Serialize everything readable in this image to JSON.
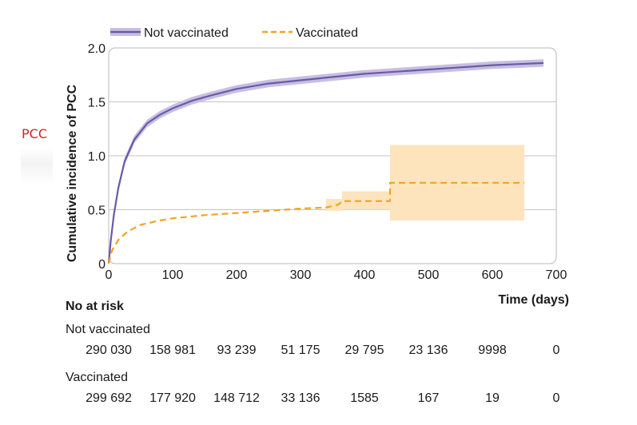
{
  "side_label": "PCC",
  "chart_data": {
    "type": "line",
    "title": "",
    "xlabel": "Time (days)",
    "ylabel": "Cumulative incidence of PCC",
    "xlim": [
      0,
      700
    ],
    "ylim": [
      0,
      2.0
    ],
    "x_ticks": [
      "0",
      "100",
      "200",
      "300",
      "400",
      "500",
      "600",
      "700"
    ],
    "y_ticks": [
      "0",
      "0.5",
      "1.0",
      "1.5",
      "2.0"
    ],
    "grid": "horizontal",
    "legend_position": "top",
    "series": [
      {
        "name": "Not vaccinated",
        "color": "#6a5aa6",
        "band_color": "#c7bfe3",
        "style": "solid",
        "points": [
          [
            0,
            0
          ],
          [
            3,
            0.2
          ],
          [
            8,
            0.45
          ],
          [
            15,
            0.7
          ],
          [
            25,
            0.95
          ],
          [
            40,
            1.15
          ],
          [
            60,
            1.3
          ],
          [
            80,
            1.38
          ],
          [
            100,
            1.44
          ],
          [
            130,
            1.51
          ],
          [
            160,
            1.56
          ],
          [
            200,
            1.62
          ],
          [
            250,
            1.67
          ],
          [
            300,
            1.7
          ],
          [
            350,
            1.73
          ],
          [
            400,
            1.76
          ],
          [
            450,
            1.78
          ],
          [
            500,
            1.8
          ],
          [
            550,
            1.82
          ],
          [
            600,
            1.84
          ],
          [
            680,
            1.86
          ]
        ],
        "band_half_width": 0.035
      },
      {
        "name": "Vaccinated",
        "color": "#f0a423",
        "band_color": "#fde4bd",
        "style": "dashed",
        "points": [
          [
            0,
            0
          ],
          [
            5,
            0.12
          ],
          [
            15,
            0.22
          ],
          [
            30,
            0.3
          ],
          [
            50,
            0.36
          ],
          [
            80,
            0.4
          ],
          [
            100,
            0.42
          ],
          [
            150,
            0.45
          ],
          [
            200,
            0.47
          ],
          [
            250,
            0.49
          ],
          [
            300,
            0.51
          ],
          [
            340,
            0.52
          ],
          [
            360,
            0.55
          ],
          [
            365,
            0.58
          ],
          [
            440,
            0.58
          ],
          [
            440,
            0.75
          ],
          [
            650,
            0.75
          ]
        ],
        "bands": [
          {
            "x0": 340,
            "x1": 365,
            "lo": 0.49,
            "hi": 0.6
          },
          {
            "x0": 365,
            "x1": 440,
            "lo": 0.5,
            "hi": 0.67
          },
          {
            "x0": 440,
            "x1": 650,
            "lo": 0.4,
            "hi": 1.1
          }
        ]
      }
    ],
    "risk_table": {
      "title": "No at risk",
      "x_positions": [
        0,
        100,
        200,
        300,
        400,
        500,
        600,
        700
      ],
      "groups": [
        {
          "name": "Not vaccinated",
          "values": [
            "290 030",
            "158 981",
            "93 239",
            "51 175",
            "29 795",
            "23 136",
            "9998",
            "0"
          ]
        },
        {
          "name": "Vaccinated",
          "values": [
            "299 692",
            "177 920",
            "148 712",
            "33 136",
            "1585",
            "167",
            "19",
            "0"
          ]
        }
      ]
    }
  }
}
